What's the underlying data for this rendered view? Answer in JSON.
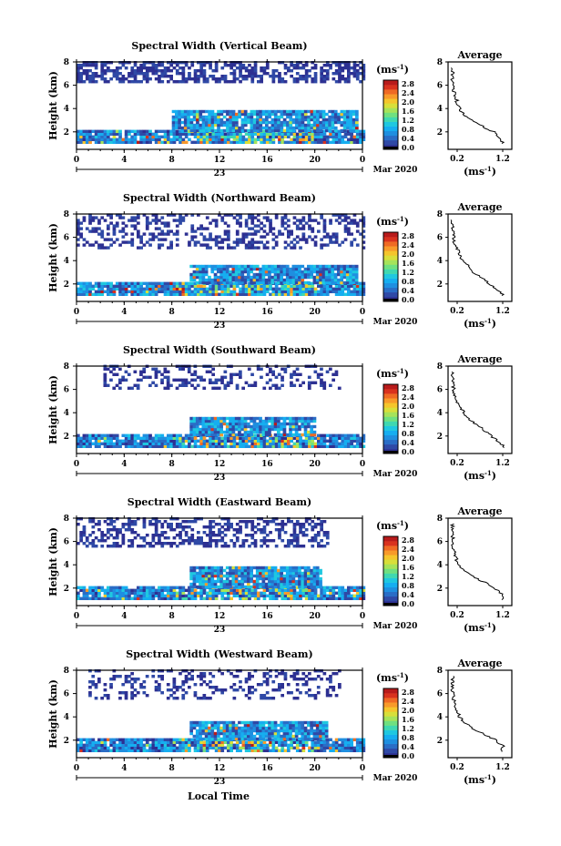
{
  "page": {
    "xlabel": "Local Time",
    "date_label": "Mar 2020",
    "day_label": "23"
  },
  "colorbar": {
    "unit": "(ms",
    "unit_exp": "-1",
    "unit_close": ")",
    "ticks": [
      "2.8",
      "2.4",
      "2.0",
      "1.6",
      "1.2",
      "0.8",
      "0.4",
      "0.0"
    ],
    "colors": [
      "#2d3092",
      "#2f49a6",
      "#2a6dc6",
      "#1f8fe0",
      "#16aef0",
      "#1fc8e0",
      "#3fd8b0",
      "#6fe080",
      "#a6e35a",
      "#d8df3a",
      "#f5c52c",
      "#f89a2a",
      "#ef6a24",
      "#d9321e",
      "#b81b1b"
    ],
    "outline_color": "#000000"
  },
  "panels": [
    {
      "title": "Spectral Width (Vertical Beam)",
      "ylabel": "Height (km)",
      "avg_title": "Average",
      "avg_xlabel": "(ms",
      "avg_xlabel_exp": "-1",
      "avg_xlabel_close": ")",
      "seed": 11
    },
    {
      "title": "Spectral Width (Northward Beam)",
      "ylabel": "Height (km)",
      "avg_title": "Average",
      "avg_xlabel": "(ms",
      "avg_xlabel_exp": "-1",
      "avg_xlabel_close": ")",
      "seed": 23
    },
    {
      "title": "Spectral Width (Southward Beam)",
      "ylabel": "Height (km)",
      "avg_title": "Average",
      "avg_xlabel": "(ms",
      "avg_xlabel_exp": "-1",
      "avg_xlabel_close": ")",
      "seed": 37
    },
    {
      "title": "Spectral Width (Eastward Beam)",
      "ylabel": "Height (km)",
      "avg_title": "Average",
      "avg_xlabel": "(ms",
      "avg_xlabel_exp": "-1",
      "avg_xlabel_close": ")",
      "seed": 41
    },
    {
      "title": "Spectral Width (Westward Beam)",
      "ylabel": "Height (km)",
      "avg_title": "Average",
      "avg_xlabel": "(ms",
      "avg_xlabel_exp": "-1",
      "avg_xlabel_close": ")",
      "seed": 59
    }
  ],
  "chart_data": [
    {
      "type": "heatmap",
      "title": "Spectral Width (Vertical Beam)",
      "xlabel": "",
      "ylabel": "Height (km)",
      "xlim": [
        0,
        24
      ],
      "ylim": [
        0.5,
        8
      ],
      "xticks": [
        "0",
        "4",
        "8",
        "12",
        "16",
        "20",
        "0"
      ],
      "yticks": [
        "2",
        "4",
        "6",
        "8"
      ],
      "colorbar": {
        "label": "(ms-1)",
        "range": [
          0,
          2.8
        ]
      },
      "layers": [
        {
          "t": [
            0,
            24
          ],
          "h": [
            1.0,
            2.0
          ],
          "value": 0.5,
          "cover": 0.92
        },
        {
          "t": [
            8,
            23.5
          ],
          "h": [
            2.0,
            3.7
          ],
          "value": 0.6,
          "cover": 0.9
        },
        {
          "t": [
            0,
            24
          ],
          "h": [
            6.2,
            8.0
          ],
          "value": 0.1,
          "cover": 0.55
        }
      ],
      "average": {
        "title": "Average",
        "xlabel": "(ms-1)",
        "xticks": [
          "0.2",
          "1.2"
        ],
        "xlim": [
          0,
          1.4
        ],
        "height": [
          1.0,
          1.5,
          2.0,
          2.5,
          3.0,
          3.5,
          4.0,
          4.5,
          5.0,
          5.5,
          6.0,
          6.5,
          7.0,
          7.5
        ],
        "value": [
          1.2,
          1.15,
          1.0,
          0.75,
          0.5,
          0.35,
          0.25,
          0.2,
          0.17,
          0.12,
          0.1,
          0.1,
          0.1,
          0.1
        ]
      }
    },
    {
      "type": "heatmap",
      "title": "Spectral Width (Northward Beam)",
      "xlabel": "",
      "ylabel": "Height (km)",
      "xlim": [
        0,
        24
      ],
      "ylim": [
        0.5,
        8
      ],
      "xticks": [
        "0",
        "4",
        "8",
        "12",
        "16",
        "20",
        "0"
      ],
      "yticks": [
        "2",
        "4",
        "6",
        "8"
      ],
      "colorbar": {
        "label": "(ms-1)",
        "range": [
          0,
          2.8
        ]
      },
      "layers": [
        {
          "t": [
            0,
            24
          ],
          "h": [
            1.0,
            2.0
          ],
          "value": 0.6,
          "cover": 0.9
        },
        {
          "t": [
            9.5,
            23.5
          ],
          "h": [
            2.0,
            3.6
          ],
          "value": 0.6,
          "cover": 0.88
        },
        {
          "t": [
            0,
            24
          ],
          "h": [
            5.0,
            8.0
          ],
          "value": 0.1,
          "cover": 0.35
        }
      ],
      "average": {
        "title": "Average",
        "xlabel": "(ms-1)",
        "xticks": [
          "0.2",
          "1.2"
        ],
        "xlim": [
          0,
          1.4
        ],
        "height": [
          1.0,
          1.5,
          2.0,
          2.5,
          3.0,
          3.5,
          4.0,
          4.5,
          5.0,
          5.5,
          6.0,
          6.5,
          7.0,
          7.5
        ],
        "value": [
          1.2,
          1.1,
          0.9,
          0.75,
          0.55,
          0.45,
          0.3,
          0.25,
          0.2,
          0.15,
          0.12,
          0.1,
          0.1,
          0.1
        ]
      }
    },
    {
      "type": "heatmap",
      "title": "Spectral Width (Southward Beam)",
      "xlabel": "",
      "ylabel": "Height (km)",
      "xlim": [
        0,
        24
      ],
      "ylim": [
        0.5,
        8
      ],
      "xticks": [
        "0",
        "4",
        "8",
        "12",
        "16",
        "20",
        "0"
      ],
      "yticks": [
        "2",
        "4",
        "6",
        "8"
      ],
      "colorbar": {
        "label": "(ms-1)",
        "range": [
          0,
          2.8
        ]
      },
      "layers": [
        {
          "t": [
            0,
            24
          ],
          "h": [
            1.0,
            2.0
          ],
          "value": 0.5,
          "cover": 0.9
        },
        {
          "t": [
            9.5,
            20
          ],
          "h": [
            2.0,
            3.5
          ],
          "value": 0.6,
          "cover": 0.88
        },
        {
          "t": [
            2,
            22
          ],
          "h": [
            6.0,
            8.0
          ],
          "value": 0.1,
          "cover": 0.3
        }
      ],
      "average": {
        "title": "Average",
        "xlabel": "(ms-1)",
        "xticks": [
          "0.2",
          "1.2"
        ],
        "xlim": [
          0,
          1.4
        ],
        "height": [
          1.0,
          1.5,
          2.0,
          2.5,
          3.0,
          3.5,
          4.0,
          4.5,
          5.0,
          5.5,
          6.0,
          6.5,
          7.0,
          7.5
        ],
        "value": [
          1.25,
          1.1,
          0.95,
          0.8,
          0.6,
          0.45,
          0.35,
          0.28,
          0.2,
          0.15,
          0.12,
          0.1,
          0.1,
          0.1
        ]
      }
    },
    {
      "type": "heatmap",
      "title": "Spectral Width (Eastward Beam)",
      "xlabel": "",
      "ylabel": "Height (km)",
      "xlim": [
        0,
        24
      ],
      "ylim": [
        0.5,
        8
      ],
      "xticks": [
        "0",
        "4",
        "8",
        "12",
        "16",
        "20",
        "0"
      ],
      "yticks": [
        "2",
        "4",
        "6",
        "8"
      ],
      "colorbar": {
        "label": "(ms-1)",
        "range": [
          0,
          2.8
        ]
      },
      "layers": [
        {
          "t": [
            0,
            24
          ],
          "h": [
            1.0,
            2.0
          ],
          "value": 0.55,
          "cover": 0.92
        },
        {
          "t": [
            9.5,
            20.5
          ],
          "h": [
            2.0,
            3.8
          ],
          "value": 0.6,
          "cover": 0.9
        },
        {
          "t": [
            0,
            21
          ],
          "h": [
            5.5,
            8.0
          ],
          "value": 0.1,
          "cover": 0.45
        }
      ],
      "average": {
        "title": "Average",
        "xlabel": "(ms-1)",
        "xticks": [
          "0.2",
          "1.2"
        ],
        "xlim": [
          0,
          1.4
        ],
        "height": [
          1.0,
          1.5,
          2.0,
          2.5,
          3.0,
          3.5,
          4.0,
          4.5,
          5.0,
          5.5,
          6.0,
          6.5,
          7.0,
          7.5
        ],
        "value": [
          1.2,
          1.2,
          1.0,
          0.8,
          0.55,
          0.35,
          0.22,
          0.18,
          0.15,
          0.12,
          0.1,
          0.1,
          0.1,
          0.1
        ]
      }
    },
    {
      "type": "heatmap",
      "title": "Spectral Width (Westward Beam)",
      "xlabel": "Local Time",
      "ylabel": "Height (km)",
      "xlim": [
        0,
        24
      ],
      "ylim": [
        0.5,
        8
      ],
      "xticks": [
        "0",
        "4",
        "8",
        "12",
        "16",
        "20",
        "0"
      ],
      "yticks": [
        "2",
        "4",
        "6",
        "8"
      ],
      "colorbar": {
        "label": "(ms-1)",
        "range": [
          0,
          2.8
        ]
      },
      "layers": [
        {
          "t": [
            0,
            24
          ],
          "h": [
            1.0,
            2.0
          ],
          "value": 0.5,
          "cover": 0.9
        },
        {
          "t": [
            9.5,
            21
          ],
          "h": [
            2.0,
            3.5
          ],
          "value": 0.6,
          "cover": 0.88
        },
        {
          "t": [
            1,
            22
          ],
          "h": [
            5.5,
            8.0
          ],
          "value": 0.1,
          "cover": 0.3
        }
      ],
      "average": {
        "title": "Average",
        "xlabel": "(ms-1)",
        "xticks": [
          "0.2",
          "1.2"
        ],
        "xlim": [
          0,
          1.4
        ],
        "height": [
          1.0,
          1.5,
          2.0,
          2.5,
          3.0,
          3.5,
          4.0,
          4.5,
          5.0,
          5.5,
          6.0,
          6.5,
          7.0,
          7.5
        ],
        "value": [
          1.2,
          1.2,
          1.05,
          0.8,
          0.55,
          0.35,
          0.25,
          0.2,
          0.15,
          0.12,
          0.1,
          0.1,
          0.1,
          0.1
        ]
      }
    }
  ]
}
